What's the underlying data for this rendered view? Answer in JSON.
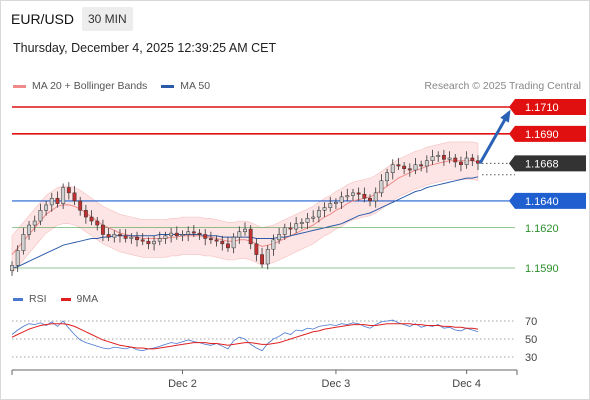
{
  "header": {
    "symbol": "EUR/USD",
    "timeframe": "30 MIN",
    "timestamp": "Thursday, December 4, 2025 12:39:25 AM CET"
  },
  "legend": {
    "items": [
      {
        "label": "MA 20 + Bollinger Bands",
        "color": "#f08a8a"
      },
      {
        "label": "MA 50",
        "color": "#2b5aa8"
      }
    ],
    "credit": "Research © 2025 Trading Central"
  },
  "indicator_legend": {
    "items": [
      {
        "label": "RSI",
        "color": "#4a78d0"
      },
      {
        "label": "9MA",
        "color": "#e02020"
      }
    ]
  },
  "colors": {
    "resistance": "#e01010",
    "support": "#1f5fd0",
    "target_support": "#2c8f2c",
    "bull_candle": "#d0d0d0",
    "bear_candle": "#c03030",
    "price_tag": "#333333",
    "arrow": "#2a63b5",
    "bollinger_fill": "#fde3e3"
  },
  "chart_data": [
    {
      "type": "candlestick",
      "title": "",
      "xlabel": "",
      "ylabel": "",
      "x_ticks": [
        "Dec 2",
        "Dec 3",
        "Dec 4"
      ],
      "ylim": [
        1.1582,
        1.1718
      ],
      "levels": [
        {
          "value": 1.171,
          "label": "1.1710",
          "kind": "resistance"
        },
        {
          "value": 1.169,
          "label": "1.1690",
          "kind": "resistance"
        },
        {
          "value": 1.1668,
          "label": "1.1668",
          "kind": "current"
        },
        {
          "value": 1.164,
          "label": "1.1640",
          "kind": "pivot"
        },
        {
          "value": 1.162,
          "label": "1.1620",
          "kind": "support"
        },
        {
          "value": 1.159,
          "label": "1.1590",
          "kind": "support"
        }
      ],
      "close_series": [
        1.1592,
        1.1603,
        1.1615,
        1.1622,
        1.1625,
        1.1633,
        1.1637,
        1.1642,
        1.1638,
        1.165,
        1.1646,
        1.164,
        1.1633,
        1.1628,
        1.1625,
        1.1622,
        1.1615,
        1.1613,
        1.1615,
        1.1614,
        1.1612,
        1.1613,
        1.1611,
        1.161,
        1.1608,
        1.161,
        1.1612,
        1.1614,
        1.1616,
        1.1614,
        1.1615,
        1.1617,
        1.1616,
        1.1615,
        1.1612,
        1.1611,
        1.161,
        1.1608,
        1.1605,
        1.1613,
        1.1617,
        1.1619,
        1.1608,
        1.16,
        1.1593,
        1.1604,
        1.1611,
        1.1615,
        1.162,
        1.1619,
        1.1623,
        1.1624,
        1.1627,
        1.1628,
        1.1633,
        1.1635,
        1.1638,
        1.1639,
        1.1643,
        1.1644,
        1.1646,
        1.1645,
        1.1642,
        1.164,
        1.1646,
        1.1655,
        1.1661,
        1.1667,
        1.1666,
        1.1664,
        1.1663,
        1.1667,
        1.1666,
        1.167,
        1.1673,
        1.1674,
        1.1671,
        1.1672,
        1.1669,
        1.1667,
        1.1672,
        1.167,
        1.1668
      ],
      "ma20_series": [
        1.16,
        1.1605,
        1.161,
        1.1615,
        1.162,
        1.1625,
        1.163,
        1.1633,
        1.1636,
        1.1637,
        1.1637,
        1.1636,
        1.1634,
        1.1631,
        1.1628,
        1.1625,
        1.1622,
        1.162,
        1.1618,
        1.1616,
        1.1615,
        1.1614,
        1.1613,
        1.1612,
        1.1612,
        1.1612,
        1.1612,
        1.1612,
        1.1613,
        1.1613,
        1.1614,
        1.1614,
        1.1614,
        1.1614,
        1.1613,
        1.1613,
        1.1612,
        1.1611,
        1.161,
        1.161,
        1.1611,
        1.1611,
        1.161,
        1.1608,
        1.1606,
        1.1607,
        1.1608,
        1.161,
        1.1612,
        1.1614,
        1.1616,
        1.1618,
        1.162,
        1.1622,
        1.1625,
        1.1628,
        1.163,
        1.1633,
        1.1635,
        1.1638,
        1.164,
        1.1641,
        1.1642,
        1.1643,
        1.1645,
        1.1648,
        1.1651,
        1.1654,
        1.1657,
        1.1659,
        1.1661,
        1.1663,
        1.1664,
        1.1666,
        1.1667,
        1.1668,
        1.1669,
        1.167,
        1.167,
        1.167,
        1.167,
        1.167,
        1.1669
      ],
      "ma50_series": [
        1.159,
        1.1591,
        1.1593,
        1.1595,
        1.1597,
        1.1599,
        1.1601,
        1.1603,
        1.1605,
        1.1607,
        1.1608,
        1.1609,
        1.161,
        1.1611,
        1.1612,
        1.1612,
        1.1613,
        1.1613,
        1.1614,
        1.1614,
        1.1614,
        1.1614,
        1.1614,
        1.1614,
        1.1614,
        1.1614,
        1.1615,
        1.1615,
        1.1615,
        1.1615,
        1.1615,
        1.1615,
        1.1615,
        1.1615,
        1.1614,
        1.1614,
        1.1614,
        1.1613,
        1.1613,
        1.1613,
        1.1613,
        1.1613,
        1.1613,
        1.1612,
        1.1612,
        1.1612,
        1.1612,
        1.1613,
        1.1613,
        1.1614,
        1.1615,
        1.1616,
        1.1617,
        1.1618,
        1.1619,
        1.162,
        1.1621,
        1.1622,
        1.1623,
        1.1625,
        1.1627,
        1.1629,
        1.163,
        1.1631,
        1.1633,
        1.1635,
        1.1637,
        1.1639,
        1.1641,
        1.1643,
        1.1645,
        1.1647,
        1.1648,
        1.165,
        1.1651,
        1.1652,
        1.1653,
        1.1654,
        1.1655,
        1.1656,
        1.1657,
        1.1657,
        1.1658
      ],
      "band_width": 0.0014,
      "forecast_target": 1.1706
    },
    {
      "type": "line",
      "title": "",
      "series": [
        {
          "name": "RSI",
          "values": [
            55,
            60,
            64,
            67,
            66,
            68,
            65,
            69,
            64,
            70,
            62,
            55,
            49,
            46,
            44,
            42,
            40,
            39,
            41,
            40,
            39,
            41,
            38,
            37,
            39,
            40,
            42,
            44,
            46,
            45,
            47,
            49,
            47,
            46,
            44,
            43,
            45,
            42,
            39,
            48,
            52,
            50,
            44,
            40,
            37,
            45,
            50,
            53,
            57,
            55,
            60,
            59,
            62,
            61,
            64,
            65,
            66,
            65,
            67,
            66,
            68,
            67,
            64,
            62,
            66,
            69,
            70,
            71,
            68,
            66,
            64,
            67,
            63,
            65,
            64,
            66,
            62,
            63,
            60,
            59,
            62,
            60,
            58
          ]
        },
        {
          "name": "9MA",
          "values": [
            52,
            55,
            58,
            61,
            63,
            65,
            66,
            67,
            67,
            67,
            66,
            64,
            61,
            58,
            55,
            52,
            49,
            47,
            45,
            43,
            42,
            41,
            40,
            40,
            39,
            39,
            40,
            41,
            42,
            43,
            44,
            45,
            46,
            46,
            46,
            45,
            45,
            44,
            43,
            44,
            45,
            46,
            46,
            45,
            44,
            44,
            45,
            46,
            48,
            50,
            52,
            54,
            56,
            58,
            59,
            61,
            62,
            63,
            64,
            65,
            66,
            66,
            66,
            65,
            65,
            66,
            67,
            67,
            67,
            67,
            67,
            66,
            66,
            65,
            65,
            65,
            64,
            64,
            63,
            63,
            62,
            62,
            61
          ]
        }
      ],
      "y_ticks": [
        "70",
        "50",
        "30"
      ],
      "levels": [
        70,
        50,
        30
      ],
      "ylim": [
        26,
        80
      ]
    }
  ]
}
